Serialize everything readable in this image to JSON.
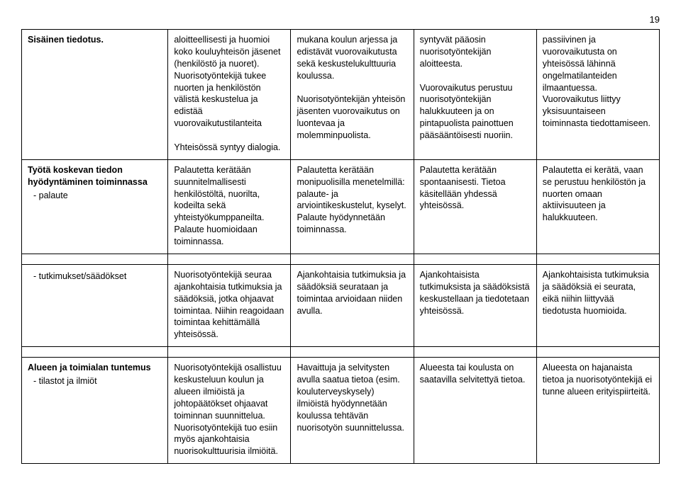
{
  "page_number": "19",
  "rows": [
    {
      "label": "Sisäinen tiedotus.",
      "sub": "",
      "c2": "aloitteellisesti ja huomioi koko kouluyhteisön jäsenet (henkilöstö ja nuoret). Nuorisotyöntekijä tukee nuorten ja henkilöstön välistä keskustelua ja edistää vuorovaikutustilanteita\n\nYhteisössä syntyy dialogia.",
      "c3": "mukana koulun arjessa ja edistävät vuorovaikutusta sekä keskustelukulttuuria koulussa.\n\nNuorisotyöntekijän yhteisön jäsenten vuorovaikutus on luontevaa ja molemminpuolista.",
      "c4": "syntyvät pääosin nuorisotyöntekijän aloitteesta.\n\nVuorovaikutus perustuu nuorisotyöntekijän halukkuuteen ja on pintapuolista painottuen pääsääntöisesti nuoriin.",
      "c5": "passiivinen ja vuorovaikutusta on yhteisössä lähinnä ongelmatilanteiden ilmaantuessa. Vuorovaikutus liittyy yksisuuntaiseen toiminnasta tiedottamiseen."
    },
    {
      "label": "Työtä koskevan tiedon hyödyntäminen toiminnassa",
      "sub": "palaute",
      "c2": "Palautetta kerätään suunnitelmallisesti henkilöstöltä, nuorilta, kodeilta sekä yhteistyökumppaneilta. Palaute huomioidaan toiminnassa.",
      "c3": "Palautetta kerätään monipuolisilla menetelmillä: palaute- ja arviointikeskustelut, kyselyt. Palaute hyödynnetään toiminnassa.",
      "c4": "Palautetta kerätään spontaanisesti. Tietoa käsitellään yhdessä yhteisössä.",
      "c5": "Palautetta ei kerätä, vaan se perustuu henkilöstön ja nuorten omaan aktiivisuuteen ja halukkuuteen."
    },
    {
      "label": "",
      "sub": "tutkimukset/säädökset",
      "c2": "Nuorisotyöntekijä seuraa ajankohtaisia tutkimuksia ja säädöksiä, jotka ohjaavat toimintaa. Niihin reagoidaan toimintaa kehittämällä yhteisössä.",
      "c3": "Ajankohtaisia tutkimuksia ja säädöksiä seurataan ja toimintaa arvioidaan niiden avulla.",
      "c4": "Ajankohtaisista tutkimuksista ja säädöksistä keskustellaan ja tiedotetaan yhteisössä.",
      "c5": "Ajankohtaisista tutkimuksia ja säädöksiä ei seurata, eikä niihin liittyvää tiedotusta huomioida."
    },
    {
      "label": "Alueen ja toimialan tuntemus",
      "sub": "tilastot ja ilmiöt",
      "c2": "Nuorisotyöntekijä osallistuu keskusteluun koulun ja alueen ilmiöistä ja johtopäätökset ohjaavat toiminnan suunnittelua. Nuorisotyöntekijä tuo esiin myös ajankohtaisia nuorisokulttuurisia ilmiöitä.",
      "c3": "Havaittuja ja selvitysten avulla saatua tietoa (esim. kouluterveyskysely) ilmiöistä hyödynnetään koulussa tehtävän nuorisotyön suunnittelussa.",
      "c4": "Alueesta tai koulusta on saatavilla selvitettyä tietoa.",
      "c5": "Alueesta on hajanaista tietoa ja nuorisotyöntekijä ei tunne alueen erityispiirteitä."
    }
  ]
}
